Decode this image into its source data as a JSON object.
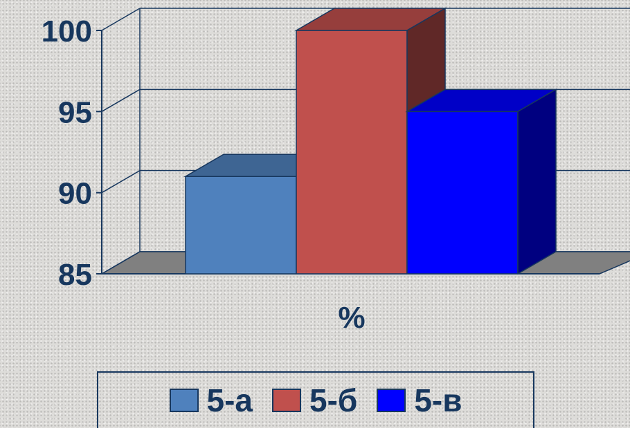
{
  "chart_data": {
    "type": "bar",
    "style": "3d-clustered",
    "categories": [
      "5-а",
      "5-б",
      "5-в"
    ],
    "values": [
      91,
      100,
      95
    ],
    "xlabel": "%",
    "ylim": [
      85,
      100
    ],
    "yticks": [
      85,
      90,
      95,
      100
    ],
    "grid": true,
    "legend_position": "bottom",
    "series": [
      {
        "name": "5-а",
        "value": 91,
        "color": "#4f81bd"
      },
      {
        "name": "5-б",
        "value": 100,
        "color": "#c0504d"
      },
      {
        "name": "5-в",
        "value": 95,
        "color": "#0000ff"
      }
    ]
  },
  "legend": {
    "items": [
      {
        "label": "5-а",
        "color": "#4f81bd"
      },
      {
        "label": "5-б",
        "color": "#c0504d"
      },
      {
        "label": "5-в",
        "color": "#0000ff"
      }
    ]
  }
}
